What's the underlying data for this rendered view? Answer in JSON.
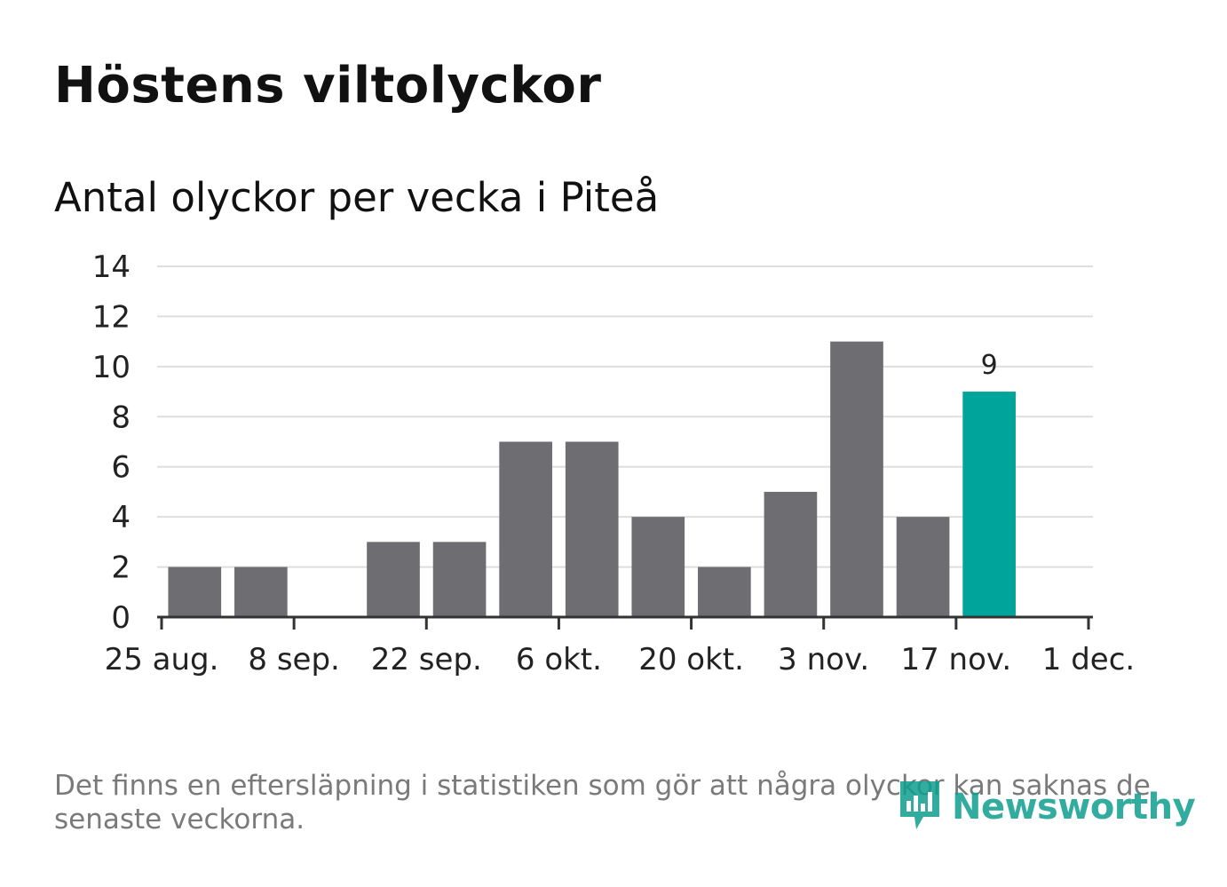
{
  "header": {
    "title": "Höstens viltolyckor",
    "subtitle": "Antal olyckor per vecka i Piteå"
  },
  "footer": {
    "note": "Det finns en eftersläpning i statistiken som gör att några olyckor kan saknas de senaste veckorna.",
    "brand": "Newsworthy"
  },
  "colors": {
    "bar": "#6e6d72",
    "highlight": "#00a49a",
    "grid": "#dedede",
    "axis": "#333333",
    "brand": "#0e9e8e"
  },
  "chart_data": {
    "type": "bar",
    "title": "Höstens viltolyckor",
    "subtitle": "Antal olyckor per vecka i Piteå",
    "xlabel": "",
    "ylabel": "",
    "ylim": [
      0,
      14
    ],
    "yticks": [
      0,
      2,
      4,
      6,
      8,
      10,
      12,
      14
    ],
    "x_range_weeks": [
      0,
      14
    ],
    "xticks": [
      {
        "week": 0,
        "label": "25 aug."
      },
      {
        "week": 2,
        "label": "8 sep."
      },
      {
        "week": 4,
        "label": "22 sep."
      },
      {
        "week": 6,
        "label": "6 okt."
      },
      {
        "week": 8,
        "label": "20 okt."
      },
      {
        "week": 10,
        "label": "3 nov."
      },
      {
        "week": 12,
        "label": "17 nov."
      },
      {
        "week": 14,
        "label": "1 dec."
      }
    ],
    "bars": [
      {
        "week": 1,
        "value": 2,
        "highlight": false
      },
      {
        "week": 2,
        "value": 2,
        "highlight": false
      },
      {
        "week": 3,
        "value": 0,
        "highlight": false
      },
      {
        "week": 4,
        "value": 3,
        "highlight": false
      },
      {
        "week": 5,
        "value": 3,
        "highlight": false
      },
      {
        "week": 6,
        "value": 7,
        "highlight": false
      },
      {
        "week": 7,
        "value": 7,
        "highlight": false
      },
      {
        "week": 8,
        "value": 4,
        "highlight": false
      },
      {
        "week": 9,
        "value": 2,
        "highlight": false
      },
      {
        "week": 10,
        "value": 5,
        "highlight": false
      },
      {
        "week": 11,
        "value": 11,
        "highlight": false
      },
      {
        "week": 12,
        "value": 4,
        "highlight": false
      },
      {
        "week": 13,
        "value": 9,
        "highlight": true
      }
    ],
    "data_labels": [
      {
        "week": 13,
        "text": "9"
      }
    ],
    "grid": true,
    "legend": "none"
  }
}
